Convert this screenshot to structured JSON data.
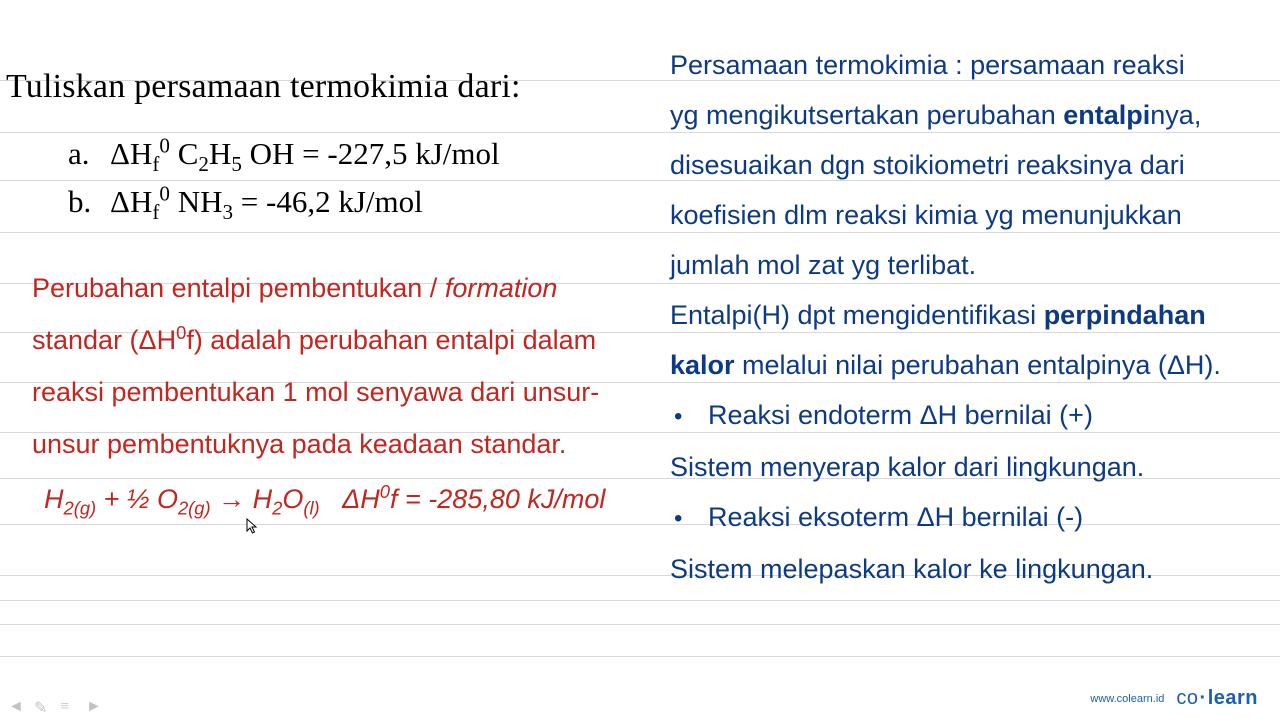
{
  "title": "Tuliskan persamaan termokimia dari:",
  "items": {
    "a": {
      "label": "a.",
      "formula_html": "ΔH<sub>f</sub><span class='sup0'>0</span> C<sub>2</sub>H<sub>5</sub> OH = -227,5 kJ/mol"
    },
    "b": {
      "label": "b.",
      "formula_html": "ΔH<sub>f</sub><span class='sup0'>0</span> NH<sub>3</sub> = -46,2 kJ/mol"
    }
  },
  "red": {
    "l1": "Perubahan entalpi pembentukan / <i>formation</i>",
    "l2": "standar (ΔH<sup>0</sup>f) adalah perubahan entalpi dalam",
    "l3": "reaksi pembentukan 1 mol senyawa dari unsur-",
    "l4": "unsur pembentuknya pada keadaan standar.",
    "eq": "H<sub>2(g)</sub> +  ½ O<sub>2(g)</sub> → H<sub>2</sub>O<sub>(l)</sub>&nbsp;&nbsp; ΔH<sup>0</sup>f = -285,80 kJ/mol"
  },
  "right": {
    "l1": "Persamaan termokimia : persamaan reaksi",
    "l2": "yg mengikutsertakan perubahan <span class='bold'>entalpi</span>nya,",
    "l3": "disesuaikan dgn stoikiometri reaksinya dari",
    "l4": "koefisien dlm reaksi kimia yg menunjukkan",
    "l5": "jumlah mol zat yg terlibat.",
    "l6": "Entalpi(H) dpt mengidentifikasi <span class='bold'>perpindahan</span>",
    "l7": "<span class='bold'>kalor</span> melalui nilai perubahan entalpinya (ΔH).",
    "b1": "Reaksi endoterm ΔH bernilai (+)",
    "s1": "Sistem menyerap kalor dari lingkungan.",
    "b2": "Reaksi eksoterm ΔH bernilai (-)",
    "s2": "Sistem melepaskan kalor ke lingkungan."
  },
  "footer": {
    "url": "www.colearn.id",
    "logo_co": "co",
    "logo_dot": "·",
    "logo_learn": "learn"
  },
  "hline_positions": [
    80,
    132,
    180,
    232,
    283,
    332,
    382,
    432,
    478,
    524,
    575,
    600,
    624,
    656
  ],
  "colors": {
    "red": "#c2261f",
    "blue": "#0d3a86",
    "line": "#d8d8d8",
    "logo": "#1a5fb4"
  }
}
